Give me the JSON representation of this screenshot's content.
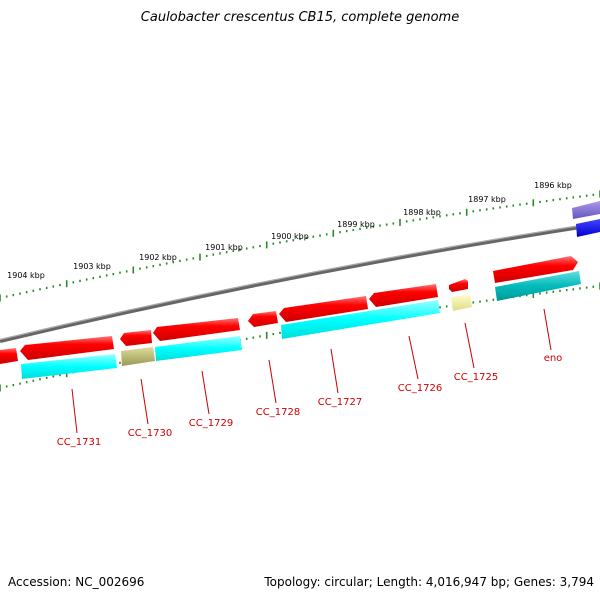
{
  "title": "Caulobacter crescentus CB15, complete genome",
  "footer": {
    "accession": "Accession: NC_002696",
    "summary": "Topology: circular; Length: 4,016,947 bp; Genes: 3,794"
  },
  "ruler_labels": [
    "1896 kbp",
    "1897 kbp",
    "1898 kbp",
    "1899 kbp",
    "1900 kbp",
    "1901 kbp",
    "1902 kbp",
    "1903 kbp",
    "1904 kbp"
  ],
  "genes": [
    {
      "name": "eno",
      "strand": "forward",
      "gene_color": "#ff0000",
      "cds_color": "#00bbbb"
    },
    {
      "name": "CC_1725",
      "strand": "reverse",
      "gene_color": "#ff0000",
      "cds_color": "#eeee99"
    },
    {
      "name": "CC_1726",
      "strand": "reverse",
      "gene_color": "#ff0000",
      "cds_color": "#00ffff"
    },
    {
      "name": "CC_1727",
      "strand": "reverse",
      "gene_color": "#ff0000",
      "cds_color": "#00ffff"
    },
    {
      "name": "CC_1728",
      "strand": "reverse",
      "gene_color": "#ff0000",
      "cds_color": ""
    },
    {
      "name": "CC_1729",
      "strand": "forward",
      "gene_color": "#ff0000",
      "cds_color": "#00ffff"
    },
    {
      "name": "CC_1730",
      "strand": "reverse",
      "gene_color": "#ff0000",
      "cds_color": "#bbbb66"
    },
    {
      "name": "CC_1731",
      "strand": "reverse",
      "gene_color": "#ff0000",
      "cds_color": "#00ffff"
    }
  ],
  "colors": {
    "backbone": "#888888",
    "ruler": "#2a8a2a",
    "label": "#cc0000",
    "purple_feature": "#7766cc",
    "blue_feature": "#0000ff"
  }
}
